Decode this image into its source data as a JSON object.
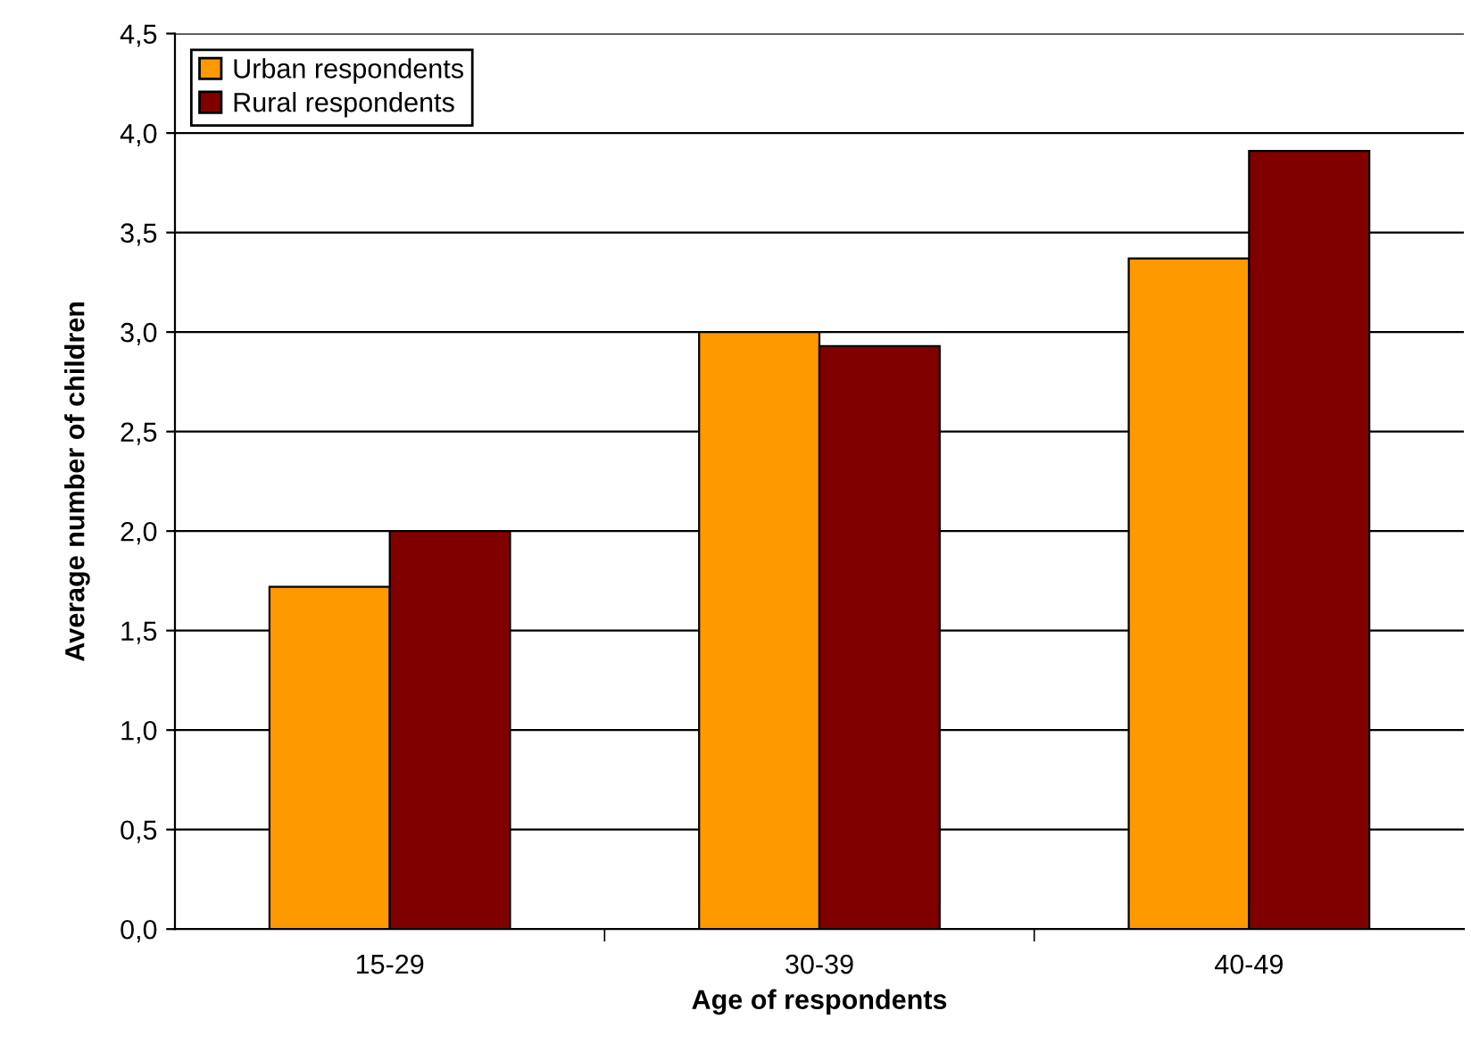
{
  "chart_data": {
    "type": "bar",
    "xlabel": "Age of respondents",
    "ylabel": "Average number of children",
    "categories": [
      "15-29",
      "30-39",
      "40-49"
    ],
    "series": [
      {
        "name": "Urban respondents",
        "color": "#ff9900",
        "values": [
          1.72,
          3.0,
          3.37
        ]
      },
      {
        "name": "Rural respondents",
        "color": "#800000",
        "values": [
          2.0,
          2.93,
          3.91
        ]
      }
    ],
    "ylim": [
      0,
      4.5
    ],
    "yticks": [
      {
        "value": 0,
        "label": "0,0"
      },
      {
        "value": 0.5,
        "label": "0,5"
      },
      {
        "value": 1,
        "label": "1,0"
      },
      {
        "value": 1.5,
        "label": "1,5"
      },
      {
        "value": 2,
        "label": "2,0"
      },
      {
        "value": 2.5,
        "label": "2,5"
      },
      {
        "value": 3,
        "label": "3,0"
      },
      {
        "value": 3.5,
        "label": "3,5"
      },
      {
        "value": 4,
        "label": "4,0"
      },
      {
        "value": 4.5,
        "label": "4,5"
      }
    ],
    "grid": "y",
    "legend": "top left"
  }
}
